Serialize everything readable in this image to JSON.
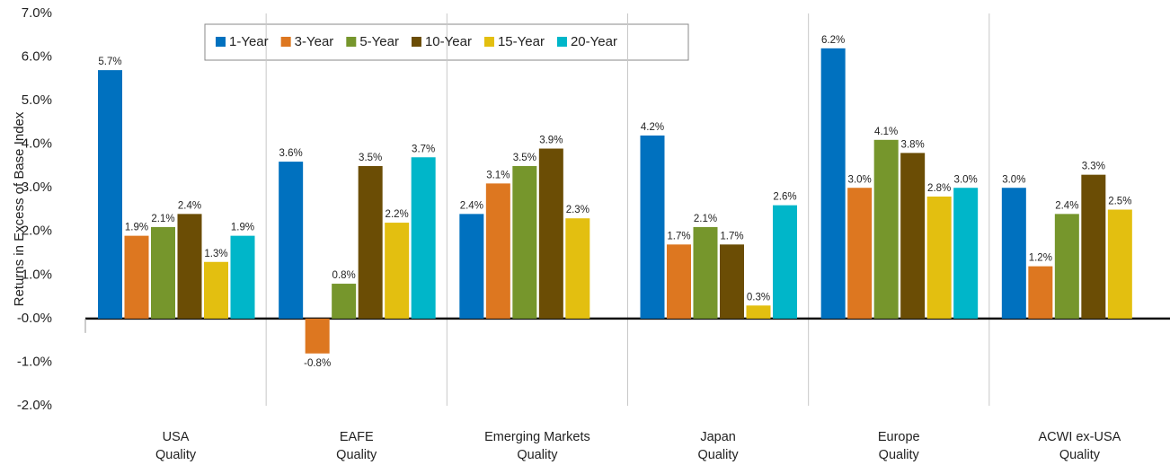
{
  "chart_data": {
    "type": "bar",
    "y_axis_label": "Returns in Excess of Base Index",
    "categories": [
      [
        "USA",
        "Quality"
      ],
      [
        "EAFE",
        "Quality"
      ],
      [
        "Emerging Markets",
        "Quality"
      ],
      [
        "Japan",
        "Quality"
      ],
      [
        "Europe",
        "Quality"
      ],
      [
        "ACWI ex-USA",
        "Quality"
      ]
    ],
    "series": [
      {
        "name": "1-Year",
        "color": "#0071bf",
        "values": [
          5.7,
          3.6,
          2.4,
          4.2,
          6.2,
          3.0
        ],
        "value_labels": [
          "5.7%",
          "3.6%",
          "2.4%",
          "4.2%",
          "6.2%",
          "3.0%"
        ]
      },
      {
        "name": "3-Year",
        "color": "#dd7720",
        "values": [
          1.9,
          -0.8,
          3.1,
          1.7,
          3.0,
          1.2
        ],
        "value_labels": [
          "1.9%",
          "-0.8%",
          "3.1%",
          "1.7%",
          "3.0%",
          "1.2%"
        ]
      },
      {
        "name": "5-Year",
        "color": "#76962c",
        "values": [
          2.1,
          0.8,
          3.5,
          2.1,
          4.1,
          2.4
        ],
        "value_labels": [
          "2.1%",
          "0.8%",
          "3.5%",
          "2.1%",
          "4.1%",
          "2.4%"
        ]
      },
      {
        "name": "10-Year",
        "color": "#6b4d05",
        "values": [
          2.4,
          3.5,
          3.9,
          1.7,
          3.8,
          3.3
        ],
        "value_labels": [
          "2.4%",
          "3.5%",
          "3.9%",
          "1.7%",
          "3.8%",
          "3.3%"
        ]
      },
      {
        "name": "15-Year",
        "color": "#e3bf10",
        "values": [
          1.3,
          2.2,
          2.3,
          0.3,
          2.8,
          2.5
        ],
        "value_labels": [
          "1.3%",
          "2.2%",
          "2.3%",
          "0.3%",
          "2.8%",
          "2.5%"
        ]
      },
      {
        "name": "20-Year",
        "color": "#00b6c9",
        "values": [
          1.9,
          3.7,
          null,
          2.6,
          3.0,
          null
        ],
        "value_labels": [
          "1.9%",
          "3.7%",
          null,
          "2.6%",
          "3.0%",
          null
        ]
      }
    ],
    "ylim": [
      -2,
      7
    ],
    "yticks": [
      {
        "value": 7,
        "label": "7.0%"
      },
      {
        "value": 6,
        "label": "6.0%"
      },
      {
        "value": 5,
        "label": "5.0%"
      },
      {
        "value": 4,
        "label": "4.0%"
      },
      {
        "value": 3,
        "label": "3.0%"
      },
      {
        "value": 2,
        "label": "2.0%"
      },
      {
        "value": 1,
        "label": "1.0%"
      },
      {
        "value": 0,
        "label": "-0.0%"
      },
      {
        "value": -1,
        "label": "-1.0%"
      },
      {
        "value": -2,
        "label": "-2.0%"
      }
    ],
    "grid": false,
    "legend": "top"
  }
}
